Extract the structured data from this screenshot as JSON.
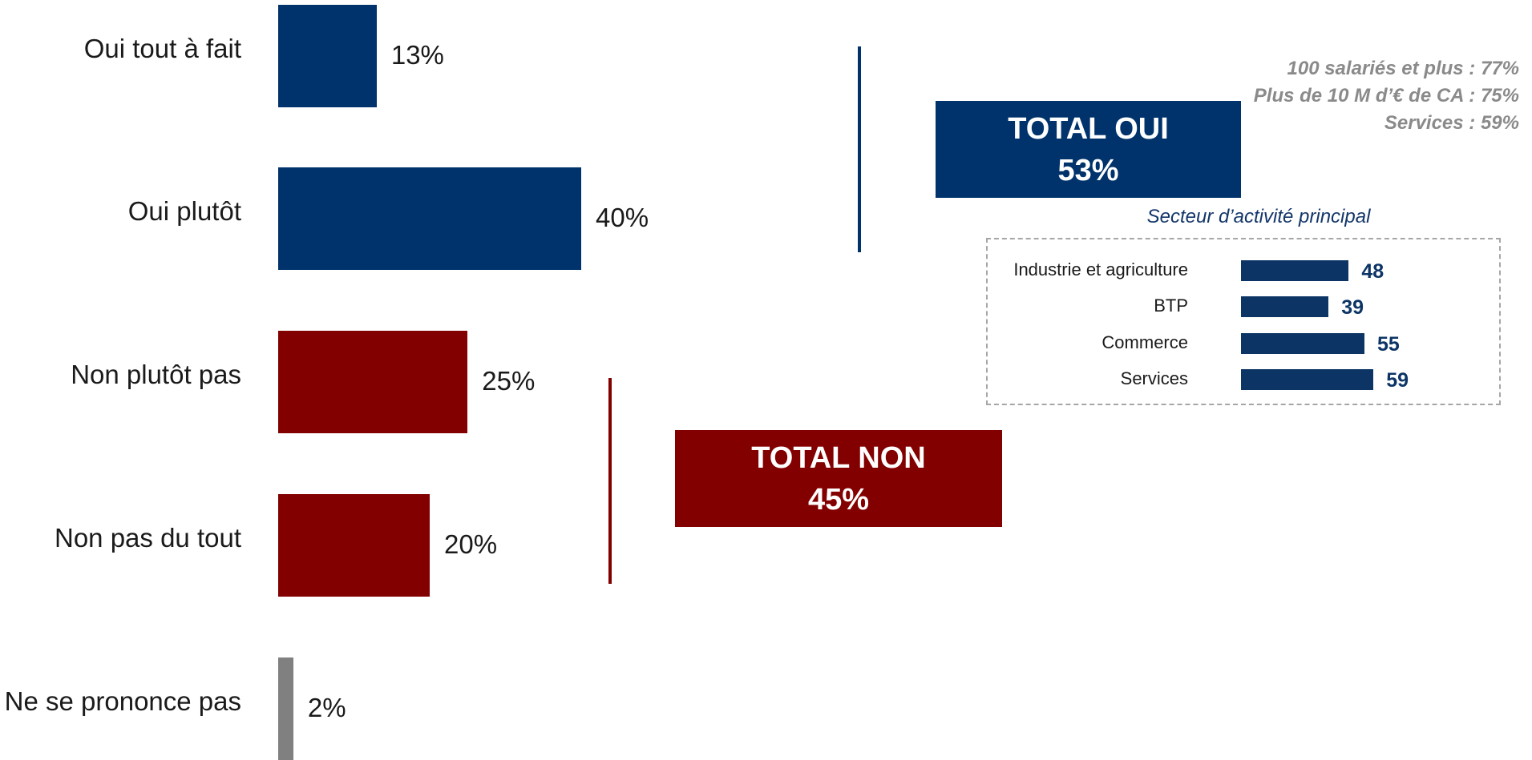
{
  "chart_data": {
    "type": "bar",
    "orientation": "horizontal",
    "categories": [
      "Oui tout à fait",
      "Oui plutôt",
      "Non plutôt pas",
      "Non pas du tout",
      "Ne se prononce pas"
    ],
    "values": [
      13,
      40,
      25,
      20,
      2
    ],
    "value_labels": [
      "13%",
      "40%",
      "25%",
      "20%",
      "2%"
    ],
    "colors": [
      "#00336b",
      "#00336b",
      "#830000",
      "#830000",
      "#808080"
    ],
    "xlim": [
      0,
      100
    ]
  },
  "totals": {
    "oui": {
      "label": "TOTAL OUI",
      "value": "53%",
      "color": "#00336b"
    },
    "non": {
      "label": "TOTAL NON",
      "value": "45%",
      "color": "#830000"
    }
  },
  "notes": [
    "100 salariés et plus : 77%",
    "Plus de 10 M d’€ de CA : 75%",
    "Services : 59%"
  ],
  "sector": {
    "title": "Secteur d’activité principal",
    "categories": [
      "Industrie et agriculture",
      "BTP",
      "Commerce",
      "Services"
    ],
    "values": [
      48,
      39,
      55,
      59
    ],
    "value_labels": [
      "48",
      "39",
      "55",
      "59"
    ],
    "color": "#0c3566"
  }
}
